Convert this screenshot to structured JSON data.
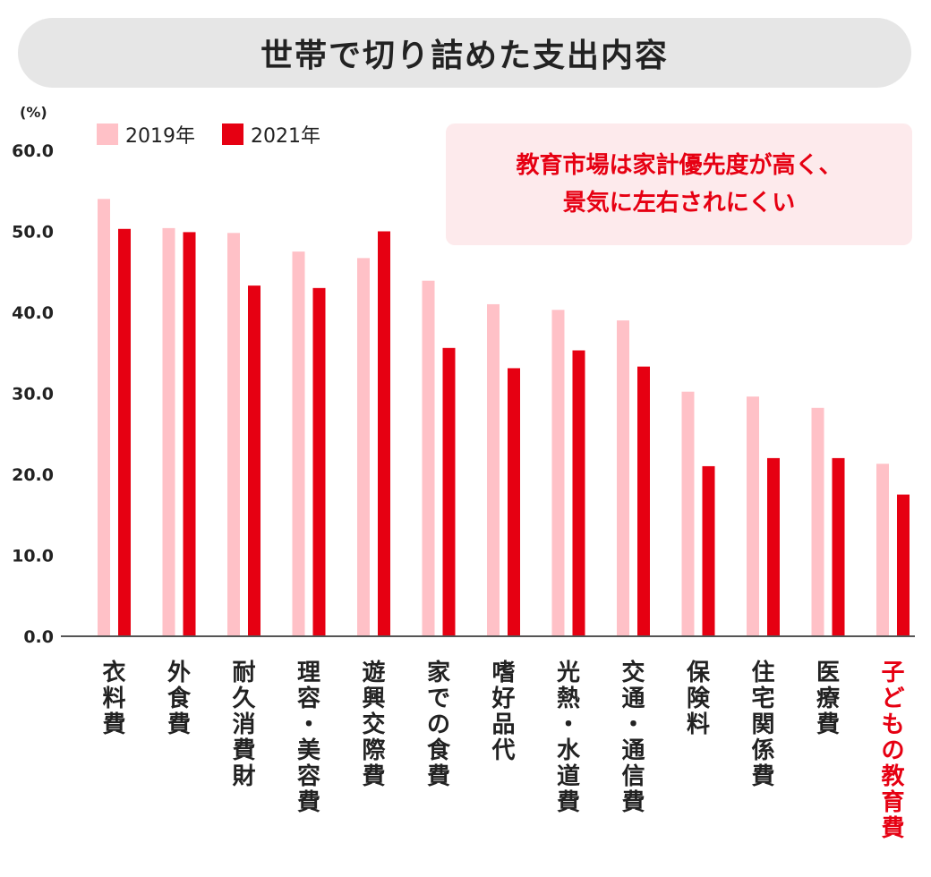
{
  "header": {
    "title": "世帯で切り詰めた支出内容"
  },
  "callout": {
    "line1": "教育市場は家計優先度が高く、",
    "line2": "景気に左右されにくい"
  },
  "colors": {
    "series_2019": "#ffc1c7",
    "series_2021": "#e60012",
    "axis": "#555555",
    "text": "#222222",
    "highlight": "#e60012"
  },
  "chart_data": {
    "type": "bar",
    "unit_label": "(%)",
    "ylim": [
      0,
      60
    ],
    "yticks": [
      "0.0",
      "10.0",
      "20.0",
      "30.0",
      "40.0",
      "50.0",
      "60.0"
    ],
    "categories": [
      "衣料費",
      "外食費",
      "耐久消費財",
      "理容・美容費",
      "遊興交際費",
      "家での食費",
      "嗜好品代",
      "光熱・水道費",
      "交通・通信費",
      "保険料",
      "住宅関係費",
      "医療費",
      "子どもの教育費"
    ],
    "highlight_category": "子どもの教育費",
    "series": [
      {
        "name": "2019年",
        "values": [
          54.0,
          50.4,
          49.8,
          47.5,
          46.7,
          43.9,
          41.0,
          40.3,
          39.0,
          30.2,
          29.6,
          28.2,
          21.3
        ]
      },
      {
        "name": "2021年",
        "values": [
          50.3,
          49.9,
          43.3,
          43.0,
          50.0,
          35.6,
          33.1,
          35.3,
          33.3,
          21.0,
          22.0,
          22.0,
          17.5
        ]
      }
    ],
    "legend_position": "top-left",
    "grid": false
  }
}
